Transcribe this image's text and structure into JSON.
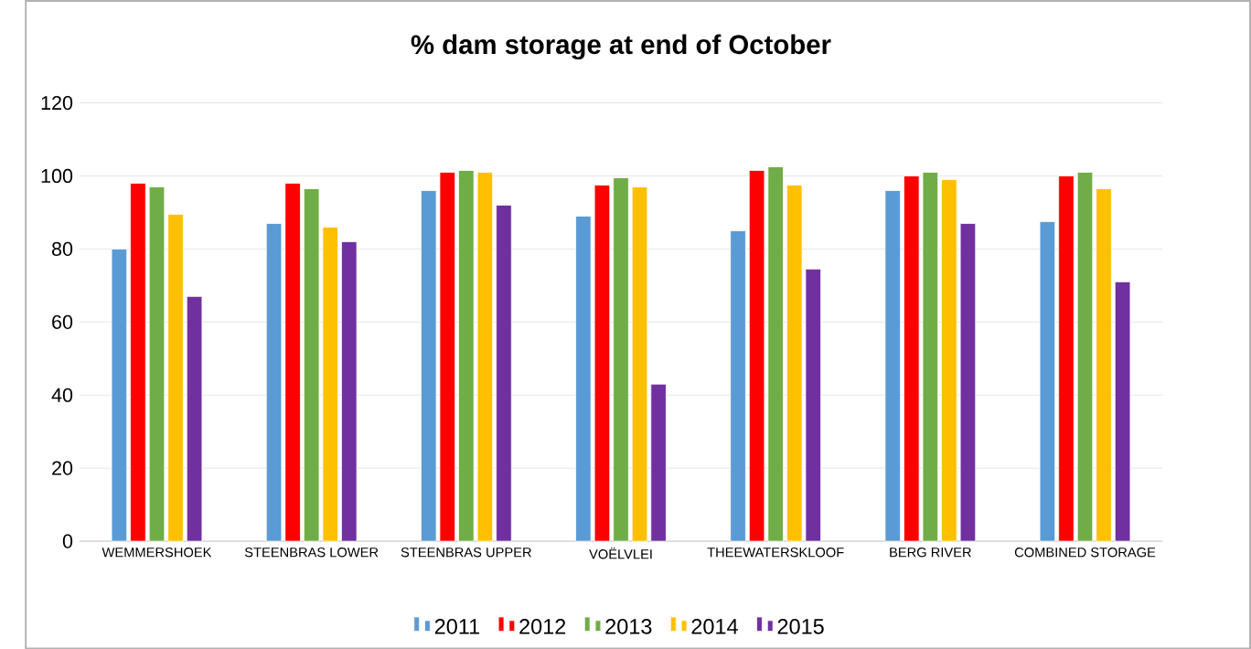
{
  "chart_data": {
    "type": "bar",
    "title": "% dam storage at end of October",
    "categories": [
      "WEMMERSHOEK",
      "STEENBRAS LOWER",
      "STEENBRAS UPPER",
      "VOËLVLEI",
      "THEEWATERSKLOOF",
      "BERG RIVER",
      "COMBINED STORAGE"
    ],
    "series": [
      {
        "name": "2011",
        "color": "#5b9bd5",
        "values": [
          80,
          87,
          96,
          89,
          85,
          96,
          87.5
        ]
      },
      {
        "name": "2012",
        "color": "#ff0000",
        "values": [
          98,
          98,
          101,
          97.5,
          101.5,
          100,
          100
        ]
      },
      {
        "name": "2013",
        "color": "#70ad47",
        "values": [
          97,
          96.5,
          101.5,
          99.5,
          102.5,
          101,
          101
        ]
      },
      {
        "name": "2014",
        "color": "#ffc000",
        "values": [
          89.5,
          86,
          101,
          97,
          97.5,
          99,
          96.5
        ]
      },
      {
        "name": "2015",
        "color": "#7030a0",
        "values": [
          67,
          82,
          92,
          43,
          74.5,
          87,
          71
        ]
      }
    ],
    "ylim": [
      0,
      120
    ],
    "yticks": [
      0,
      20,
      40,
      60,
      80,
      100,
      120
    ],
    "grid": "y",
    "legend": "bottom"
  }
}
